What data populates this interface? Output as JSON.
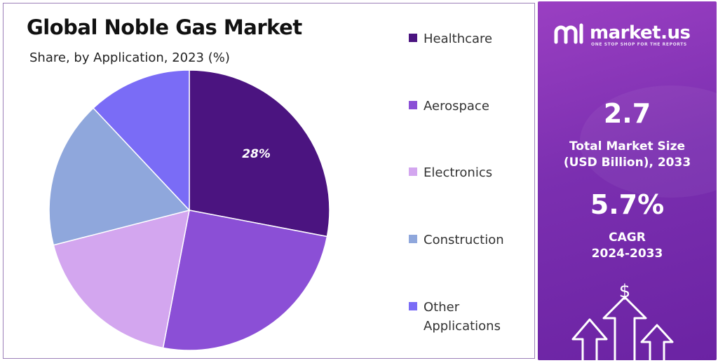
{
  "chart_data": {
    "type": "pie",
    "title": "Global Noble Gas Market",
    "subtitle": "Share, by Application, 2023 (%)",
    "slices": [
      {
        "name": "Healthcare",
        "value": 28,
        "color": "#4b1480",
        "label": "28%"
      },
      {
        "name": "Aerospace",
        "value": 25,
        "color": "#8b4fd6",
        "label": ""
      },
      {
        "name": "Electronics",
        "value": 18,
        "color": "#d3a6ef",
        "label": ""
      },
      {
        "name": "Construction",
        "value": 17,
        "color": "#8fa7dc",
        "label": ""
      },
      {
        "name": "Other Applications",
        "value": 12,
        "color": "#7a6cf6",
        "label": ""
      }
    ],
    "legend_position": "right"
  },
  "brand": {
    "name": "market.us",
    "tagline": "ONE STOP SHOP FOR THE REPORTS"
  },
  "stats": {
    "market_size_value": "2.7",
    "market_size_label_line1": "Total Market Size",
    "market_size_label_line2": "(USD Billion), 2033",
    "cagr_value": "5.7%",
    "cagr_label_line1": "CAGR",
    "cagr_label_line2": "2024-2033"
  },
  "icons": {
    "logo": "market-us-logo-icon",
    "dollar": "dollar-sign-icon",
    "growth": "growth-arrows-icon"
  }
}
